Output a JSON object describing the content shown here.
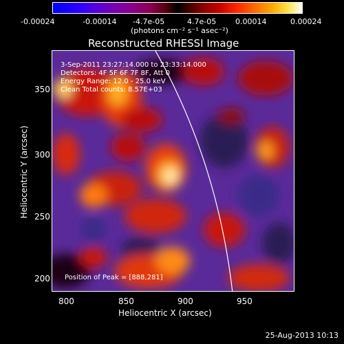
{
  "colorbar": {
    "tick_labels": [
      "-0.00024",
      "-0.00014",
      "-4.7e-05",
      "4.7e-05",
      "0.00014",
      "0.00024"
    ],
    "unit_label": "(photons cm⁻² s⁻¹ asec⁻²)"
  },
  "plot": {
    "title": "Reconstructed RHESSI Image",
    "xlabel": "Heliocentric X (arcsec)",
    "ylabel": "Heliocentric Y (arcsec)",
    "x_ticks": [
      "800",
      "850",
      "900",
      "950"
    ],
    "y_ticks": [
      "200",
      "250",
      "300",
      "350"
    ],
    "annotations": {
      "time": "3-Sep-2011 23:27:14.000 to 23:33:14.000",
      "detectors": "Detectors: 4F 5F 6F 7F 8F, Att 0",
      "energy": "Energy Range: 12.0 - 25.0 keV",
      "method": "Clean     Total counts: 8.57E+03",
      "peak": "Position of Peak = [888,281]"
    }
  },
  "footer": {
    "timestamp": "25-Aug-2013 10:13"
  }
}
